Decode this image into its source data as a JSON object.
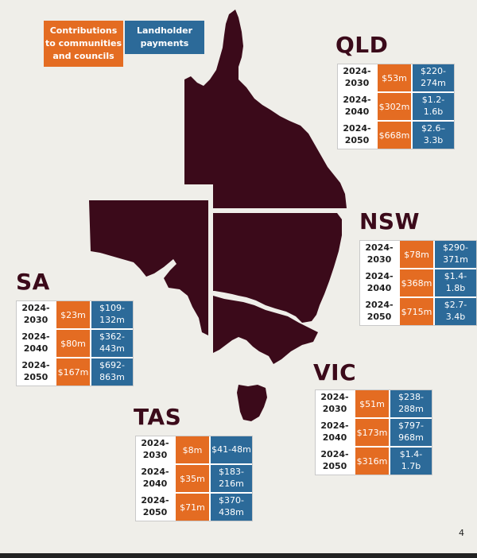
{
  "legend": {
    "contributions": "Contributions to communities and councils",
    "landholder": "Landholder payments",
    "colors": {
      "contributions": "#e46c22",
      "landholder": "#2c6a99"
    }
  },
  "map": {
    "fill": "#3b0a1a"
  },
  "states": {
    "qld": {
      "name": "QLD",
      "rows": [
        {
          "year": "2024-2030",
          "contrib": "$53m",
          "land": "$220-274m"
        },
        {
          "year": "2024-2040",
          "contrib": "$302m",
          "land": "$1.2-1.6b"
        },
        {
          "year": "2024-2050",
          "contrib": "$668m",
          "land": "$2.6–3.3b"
        }
      ]
    },
    "nsw": {
      "name": "NSW",
      "rows": [
        {
          "year": "2024-2030",
          "contrib": "$78m",
          "land": "$290-371m"
        },
        {
          "year": "2024-2040",
          "contrib": "$368m",
          "land": "$1.4-1.8b"
        },
        {
          "year": "2024-2050",
          "contrib": "$715m",
          "land": "$2.7-3.4b"
        }
      ]
    },
    "sa": {
      "name": "SA",
      "rows": [
        {
          "year": "2024-2030",
          "contrib": "$23m",
          "land": "$109-132m"
        },
        {
          "year": "2024-2040",
          "contrib": "$80m",
          "land": "$362-443m"
        },
        {
          "year": "2024-2050",
          "contrib": "$167m",
          "land": "$692-863m"
        }
      ]
    },
    "vic": {
      "name": "VIC",
      "rows": [
        {
          "year": "2024-2030",
          "contrib": "$51m",
          "land": "$238-288m"
        },
        {
          "year": "2024-2040",
          "contrib": "$173m",
          "land": "$797-968m"
        },
        {
          "year": "2024-2050",
          "contrib": "$316m",
          "land": "$1.4-1.7b"
        }
      ]
    },
    "tas": {
      "name": "TAS",
      "rows": [
        {
          "year": "2024-2030",
          "contrib": "$8m",
          "land": "$41-48m"
        },
        {
          "year": "2024-2040",
          "contrib": "$35m",
          "land": "$183-216m"
        },
        {
          "year": "2024-2050",
          "contrib": "$71m",
          "land": "$370-438m"
        }
      ]
    }
  },
  "page_number": "4"
}
